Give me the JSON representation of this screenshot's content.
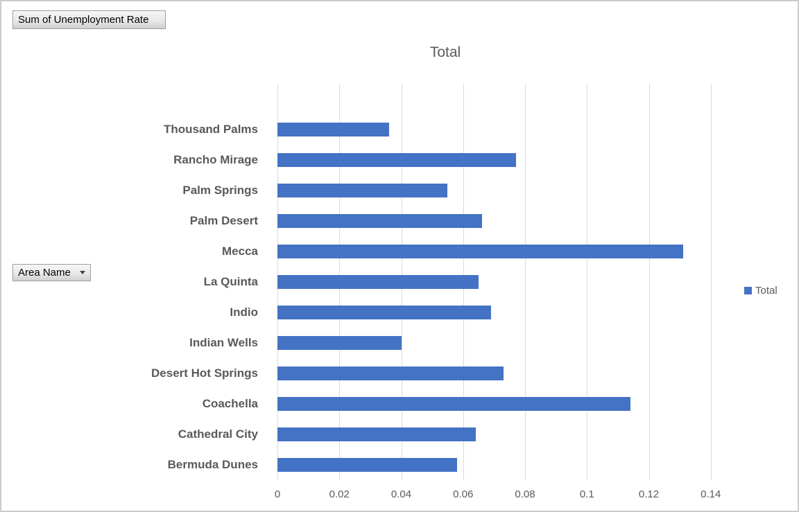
{
  "field_buttons": {
    "value_button": {
      "label": "Sum of Unemployment Rate"
    },
    "axis_button": {
      "label": "Area Name",
      "has_dropdown": true
    }
  },
  "chart_data": {
    "type": "bar",
    "orientation": "horizontal",
    "title": "Total",
    "categories": [
      "Thousand Palms",
      "Rancho Mirage",
      "Palm Springs",
      "Palm Desert",
      "Mecca",
      "La Quinta",
      "Indio",
      "Indian Wells",
      "Desert Hot Springs",
      "Coachella",
      "Cathedral City",
      "Bermuda Dunes"
    ],
    "values": [
      0.036,
      0.077,
      0.055,
      0.066,
      0.131,
      0.065,
      0.069,
      0.04,
      0.073,
      0.114,
      0.064,
      0.058
    ],
    "category_order": "top-to-bottom as displayed",
    "x_tick_labels": [
      "0",
      "0.02",
      "0.04",
      "0.06",
      "0.08",
      "0.1",
      "0.12",
      "0.14"
    ],
    "xlim": [
      0,
      0.16
    ],
    "grid": true,
    "top_empty_slot": true,
    "legend": {
      "position": "right",
      "entries": [
        {
          "label": "Total",
          "color": "#4472C4"
        }
      ]
    }
  },
  "colors": {
    "bar": "#4472C4",
    "gridline": "#D9D9D9",
    "axis_text": "#595959",
    "category_text": "#595959",
    "title_text": "#595959",
    "button_border": "#9E9E9E",
    "canvas_border": "#CBCBCB"
  }
}
